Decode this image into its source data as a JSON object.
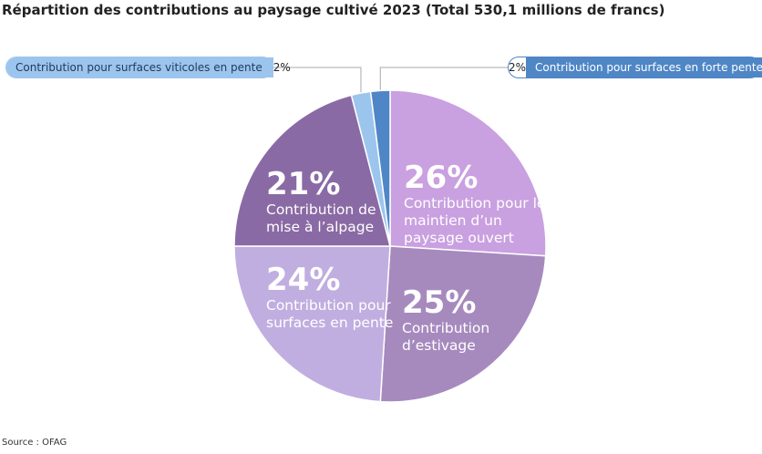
{
  "title": "Répartition des contributions au paysage cultivé  2023 (Total 530,1 millions de francs)",
  "source": "Source : OFAG",
  "chart_data": {
    "type": "pie",
    "title": "Répartition des contributions au paysage cultivé  2023 (Total 530,1 millions de francs)",
    "total_label": "Total 530,1 millions de francs",
    "slices": [
      {
        "name": "Contribution pour le maintien d’un paysage ouvert",
        "label_lines": [
          "Contribution pour le",
          "maintien d’un",
          "paysage ouvert"
        ],
        "pct_label": "26%",
        "value": 26,
        "color": "#c9a0e0"
      },
      {
        "name": "Contribution d’estivage",
        "label_lines": [
          "Contribution",
          "d’estivage"
        ],
        "pct_label": "25%",
        "value": 25,
        "color": "#a68abe"
      },
      {
        "name": "Contribution pour surfaces en pente",
        "label_lines": [
          "Contribution pour",
          "surfaces en pente"
        ],
        "pct_label": "24%",
        "value": 24,
        "color": "#c0aee0"
      },
      {
        "name": "Contribution de mise à l’alpage",
        "label_lines": [
          "Contribution de",
          "mise à l’alpage"
        ],
        "pct_label": "21%",
        "value": 21,
        "color": "#8a6aa4"
      },
      {
        "name": "Contribution pour surfaces viticoles en pente",
        "pct_label": "2%",
        "value": 2,
        "color": "#9cc5ee"
      },
      {
        "name": "Contribution pour surfaces en forte pente",
        "pct_label": "2%",
        "value": 2,
        "color": "#4f86c6"
      }
    ]
  },
  "callouts": {
    "left": {
      "label": "Contribution pour surfaces viticoles en pente",
      "pct": "2%"
    },
    "right": {
      "label": "Contribution pour surfaces en forte pente",
      "pct": "2%"
    }
  }
}
